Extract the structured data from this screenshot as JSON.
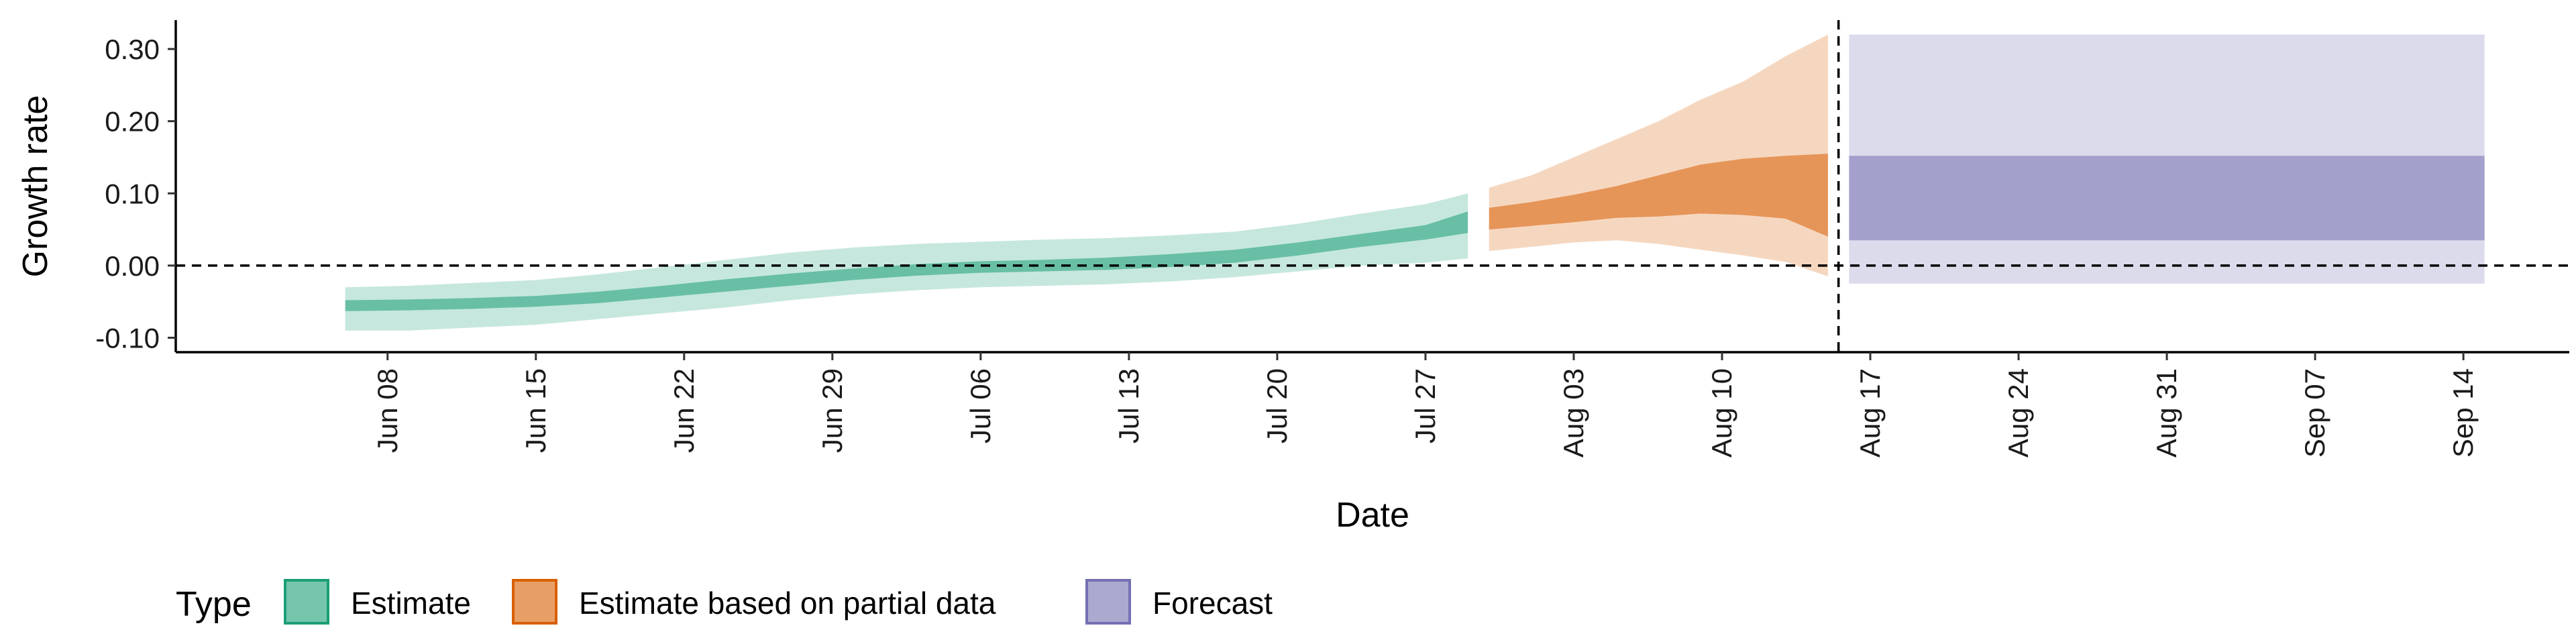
{
  "chart_data": {
    "type": "area",
    "xlabel": "Date",
    "ylabel": "Growth rate",
    "ylim": [
      -0.12,
      0.34
    ],
    "y_ticks": [
      -0.1,
      0.0,
      0.1,
      0.2,
      0.3
    ],
    "y_tick_labels": [
      "-0.10",
      "0.00",
      "0.10",
      "0.20",
      "0.30"
    ],
    "x_ticks": [
      "2020-06-08",
      "2020-06-15",
      "2020-06-22",
      "2020-06-29",
      "2020-07-06",
      "2020-07-13",
      "2020-07-20",
      "2020-07-27",
      "2020-08-03",
      "2020-08-10",
      "2020-08-17",
      "2020-08-24",
      "2020-08-31",
      "2020-09-07",
      "2020-09-14"
    ],
    "x_tick_labels": [
      "Jun 08",
      "Jun 15",
      "Jun 22",
      "Jun 29",
      "Jul 06",
      "Jul 13",
      "Jul 20",
      "Jul 27",
      "Aug 03",
      "Aug 10",
      "Aug 17",
      "Aug 24",
      "Aug 31",
      "Sep 07",
      "Sep 14"
    ],
    "xlim": [
      "2020-05-29",
      "2020-09-19"
    ],
    "reference_lines": {
      "horizontal_y": 0.0,
      "vertical_x": "2020-08-15.5"
    },
    "grid": false,
    "legend_position": "bottom-left",
    "legend_title": "Type",
    "series": [
      {
        "name": "Estimate",
        "color": "#1b9e77",
        "points": [
          {
            "date": "2020-06-06",
            "lo90": -0.09,
            "lo50": -0.063,
            "hi50": -0.048,
            "hi90": -0.03
          },
          {
            "date": "2020-06-09",
            "lo90": -0.09,
            "lo50": -0.062,
            "hi50": -0.047,
            "hi90": -0.028
          },
          {
            "date": "2020-06-12",
            "lo90": -0.086,
            "lo50": -0.06,
            "hi50": -0.045,
            "hi90": -0.024
          },
          {
            "date": "2020-06-15",
            "lo90": -0.082,
            "lo50": -0.057,
            "hi50": -0.042,
            "hi90": -0.02
          },
          {
            "date": "2020-06-18",
            "lo90": -0.074,
            "lo50": -0.052,
            "hi50": -0.036,
            "hi90": -0.012
          },
          {
            "date": "2020-06-21",
            "lo90": -0.066,
            "lo50": -0.044,
            "hi50": -0.028,
            "hi90": -0.002
          },
          {
            "date": "2020-06-24",
            "lo90": -0.058,
            "lo50": -0.036,
            "hi50": -0.019,
            "hi90": 0.008
          },
          {
            "date": "2020-06-27",
            "lo90": -0.048,
            "lo50": -0.028,
            "hi50": -0.011,
            "hi90": 0.018
          },
          {
            "date": "2020-06-30",
            "lo90": -0.04,
            "lo50": -0.02,
            "hi50": -0.004,
            "hi90": 0.025
          },
          {
            "date": "2020-07-03",
            "lo90": -0.034,
            "lo50": -0.014,
            "hi50": 0.002,
            "hi90": 0.03
          },
          {
            "date": "2020-07-06",
            "lo90": -0.03,
            "lo50": -0.01,
            "hi50": 0.006,
            "hi90": 0.033
          },
          {
            "date": "2020-07-09",
            "lo90": -0.028,
            "lo50": -0.008,
            "hi50": 0.008,
            "hi90": 0.036
          },
          {
            "date": "2020-07-12",
            "lo90": -0.026,
            "lo50": -0.006,
            "hi50": 0.011,
            "hi90": 0.038
          },
          {
            "date": "2020-07-15",
            "lo90": -0.022,
            "lo50": -0.002,
            "hi50": 0.016,
            "hi90": 0.042
          },
          {
            "date": "2020-07-18",
            "lo90": -0.016,
            "lo50": 0.004,
            "hi50": 0.022,
            "hi90": 0.047
          },
          {
            "date": "2020-07-21",
            "lo90": -0.008,
            "lo50": 0.014,
            "hi50": 0.032,
            "hi90": 0.058
          },
          {
            "date": "2020-07-24",
            "lo90": 0.0,
            "lo50": 0.026,
            "hi50": 0.044,
            "hi90": 0.072
          },
          {
            "date": "2020-07-27",
            "lo90": 0.004,
            "lo50": 0.036,
            "hi50": 0.056,
            "hi90": 0.085
          },
          {
            "date": "2020-07-29",
            "lo90": 0.01,
            "lo50": 0.045,
            "hi50": 0.075,
            "hi90": 0.1
          }
        ]
      },
      {
        "name": "Estimate based on partial data",
        "color": "#d95f02",
        "points": [
          {
            "date": "2020-07-30",
            "lo90": 0.02,
            "lo50": 0.05,
            "hi50": 0.08,
            "hi90": 0.108
          },
          {
            "date": "2020-08-01",
            "lo90": 0.026,
            "lo50": 0.055,
            "hi50": 0.088,
            "hi90": 0.125
          },
          {
            "date": "2020-08-03",
            "lo90": 0.032,
            "lo50": 0.06,
            "hi50": 0.098,
            "hi90": 0.15
          },
          {
            "date": "2020-08-05",
            "lo90": 0.035,
            "lo50": 0.066,
            "hi50": 0.11,
            "hi90": 0.175
          },
          {
            "date": "2020-08-07",
            "lo90": 0.03,
            "lo50": 0.068,
            "hi50": 0.125,
            "hi90": 0.2
          },
          {
            "date": "2020-08-09",
            "lo90": 0.022,
            "lo50": 0.072,
            "hi50": 0.14,
            "hi90": 0.23
          },
          {
            "date": "2020-08-11",
            "lo90": 0.014,
            "lo50": 0.07,
            "hi50": 0.148,
            "hi90": 0.255
          },
          {
            "date": "2020-08-13",
            "lo90": 0.005,
            "lo50": 0.065,
            "hi50": 0.152,
            "hi90": 0.29
          },
          {
            "date": "2020-08-15",
            "lo90": -0.015,
            "lo50": 0.04,
            "hi50": 0.155,
            "hi90": 0.32
          }
        ]
      },
      {
        "name": "Forecast",
        "color": "#7570b3",
        "points": [
          {
            "date": "2020-08-16",
            "lo90": -0.025,
            "lo50": 0.035,
            "hi50": 0.152,
            "hi90": 0.32
          },
          {
            "date": "2020-09-15",
            "lo90": -0.025,
            "lo50": 0.035,
            "hi50": 0.152,
            "hi90": 0.32
          }
        ]
      }
    ]
  }
}
